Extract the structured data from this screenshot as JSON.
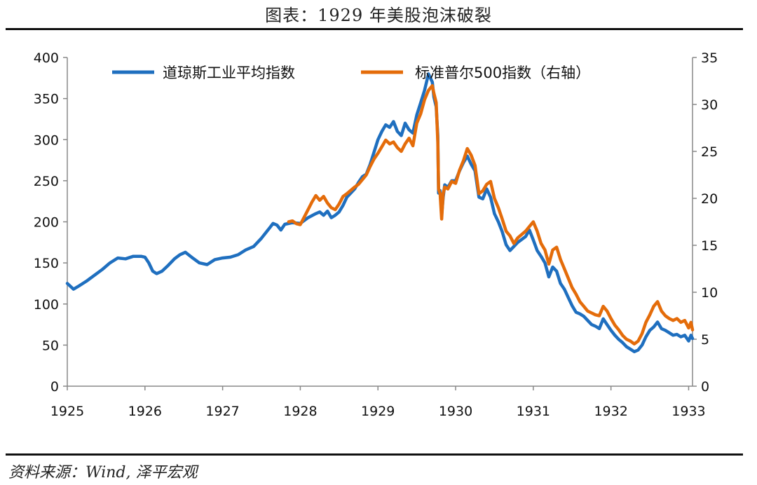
{
  "title": "图表：1929 年美股泡沫破裂",
  "source": "资料来源：Wind, 泽平宏观",
  "chart_data": {
    "type": "line",
    "x_ticks": [
      "1925",
      "1926",
      "1927",
      "1928",
      "1929",
      "1930",
      "1931",
      "1932",
      "1933"
    ],
    "x_range": [
      1925.0,
      1933.05
    ],
    "y_left": {
      "range": [
        0,
        400
      ],
      "ticks": [
        "0",
        "50",
        "100",
        "150",
        "200",
        "250",
        "300",
        "350",
        "400"
      ]
    },
    "y_right": {
      "range": [
        0,
        35
      ],
      "ticks": [
        "0",
        "5",
        "10",
        "15",
        "20",
        "25",
        "30",
        "35"
      ]
    },
    "legend_position": "top",
    "series": [
      {
        "name": "道琼斯工业平均指数",
        "axis": "left",
        "color": "#1F6FBF",
        "points": [
          [
            1925.0,
            125
          ],
          [
            1925.08,
            118
          ],
          [
            1925.15,
            122
          ],
          [
            1925.25,
            128
          ],
          [
            1925.35,
            135
          ],
          [
            1925.45,
            142
          ],
          [
            1925.55,
            150
          ],
          [
            1925.65,
            156
          ],
          [
            1925.75,
            155
          ],
          [
            1925.85,
            158
          ],
          [
            1925.95,
            158
          ],
          [
            1926.0,
            157
          ],
          [
            1926.05,
            150
          ],
          [
            1926.1,
            140
          ],
          [
            1926.15,
            137
          ],
          [
            1926.22,
            140
          ],
          [
            1926.3,
            147
          ],
          [
            1926.38,
            155
          ],
          [
            1926.45,
            160
          ],
          [
            1926.52,
            163
          ],
          [
            1926.6,
            157
          ],
          [
            1926.7,
            150
          ],
          [
            1926.8,
            148
          ],
          [
            1926.9,
            154
          ],
          [
            1927.0,
            156
          ],
          [
            1927.1,
            157
          ],
          [
            1927.2,
            160
          ],
          [
            1927.3,
            166
          ],
          [
            1927.4,
            170
          ],
          [
            1927.5,
            180
          ],
          [
            1927.6,
            192
          ],
          [
            1927.65,
            198
          ],
          [
            1927.7,
            196
          ],
          [
            1927.75,
            190
          ],
          [
            1927.8,
            197
          ],
          [
            1927.9,
            199
          ],
          [
            1928.0,
            198
          ],
          [
            1928.1,
            205
          ],
          [
            1928.2,
            210
          ],
          [
            1928.25,
            212
          ],
          [
            1928.3,
            208
          ],
          [
            1928.35,
            213
          ],
          [
            1928.4,
            205
          ],
          [
            1928.45,
            208
          ],
          [
            1928.5,
            212
          ],
          [
            1928.55,
            220
          ],
          [
            1928.6,
            230
          ],
          [
            1928.7,
            240
          ],
          [
            1928.75,
            248
          ],
          [
            1928.8,
            255
          ],
          [
            1928.85,
            258
          ],
          [
            1928.9,
            270
          ],
          [
            1928.95,
            285
          ],
          [
            1929.0,
            300
          ],
          [
            1929.05,
            310
          ],
          [
            1929.1,
            318
          ],
          [
            1929.15,
            315
          ],
          [
            1929.2,
            322
          ],
          [
            1929.25,
            310
          ],
          [
            1929.3,
            305
          ],
          [
            1929.35,
            320
          ],
          [
            1929.4,
            312
          ],
          [
            1929.45,
            308
          ],
          [
            1929.5,
            330
          ],
          [
            1929.55,
            345
          ],
          [
            1929.6,
            360
          ],
          [
            1929.65,
            380
          ],
          [
            1929.7,
            370
          ],
          [
            1929.72,
            352
          ],
          [
            1929.75,
            340
          ],
          [
            1929.77,
            305
          ],
          [
            1929.78,
            235
          ],
          [
            1929.8,
            238
          ],
          [
            1929.82,
            208
          ],
          [
            1929.84,
            230
          ],
          [
            1929.86,
            245
          ],
          [
            1929.9,
            242
          ],
          [
            1929.95,
            250
          ],
          [
            1930.0,
            250
          ],
          [
            1930.05,
            262
          ],
          [
            1930.1,
            272
          ],
          [
            1930.15,
            280
          ],
          [
            1930.2,
            270
          ],
          [
            1930.25,
            262
          ],
          [
            1930.3,
            230
          ],
          [
            1930.35,
            228
          ],
          [
            1930.4,
            240
          ],
          [
            1930.45,
            230
          ],
          [
            1930.5,
            210
          ],
          [
            1930.55,
            200
          ],
          [
            1930.6,
            188
          ],
          [
            1930.65,
            172
          ],
          [
            1930.7,
            165
          ],
          [
            1930.75,
            170
          ],
          [
            1930.8,
            175
          ],
          [
            1930.9,
            182
          ],
          [
            1930.95,
            190
          ],
          [
            1931.0,
            178
          ],
          [
            1931.05,
            165
          ],
          [
            1931.1,
            158
          ],
          [
            1931.15,
            150
          ],
          [
            1931.2,
            133
          ],
          [
            1931.25,
            145
          ],
          [
            1931.3,
            140
          ],
          [
            1931.35,
            125
          ],
          [
            1931.4,
            118
          ],
          [
            1931.45,
            108
          ],
          [
            1931.5,
            98
          ],
          [
            1931.55,
            90
          ],
          [
            1931.6,
            88
          ],
          [
            1931.65,
            85
          ],
          [
            1931.7,
            80
          ],
          [
            1931.75,
            75
          ],
          [
            1931.8,
            73
          ],
          [
            1931.85,
            70
          ],
          [
            1931.9,
            82
          ],
          [
            1931.95,
            75
          ],
          [
            1932.0,
            68
          ],
          [
            1932.05,
            62
          ],
          [
            1932.1,
            57
          ],
          [
            1932.15,
            53
          ],
          [
            1932.2,
            48
          ],
          [
            1932.25,
            45
          ],
          [
            1932.3,
            42
          ],
          [
            1932.35,
            44
          ],
          [
            1932.4,
            50
          ],
          [
            1932.45,
            60
          ],
          [
            1932.5,
            68
          ],
          [
            1932.55,
            72
          ],
          [
            1932.6,
            78
          ],
          [
            1932.65,
            70
          ],
          [
            1932.7,
            68
          ],
          [
            1932.75,
            65
          ],
          [
            1932.8,
            62
          ],
          [
            1932.85,
            63
          ],
          [
            1932.9,
            60
          ],
          [
            1932.95,
            62
          ],
          [
            1933.0,
            55
          ],
          [
            1933.03,
            62
          ],
          [
            1933.05,
            58
          ]
        ]
      },
      {
        "name": "标准普尔500指数（右轴）",
        "axis": "right",
        "color": "#E46C0A",
        "points": [
          [
            1927.85,
            17.5
          ],
          [
            1927.9,
            17.6
          ],
          [
            1927.95,
            17.3
          ],
          [
            1928.0,
            17.2
          ],
          [
            1928.05,
            18.0
          ],
          [
            1928.1,
            18.8
          ],
          [
            1928.15,
            19.6
          ],
          [
            1928.2,
            20.3
          ],
          [
            1928.25,
            19.8
          ],
          [
            1928.3,
            20.2
          ],
          [
            1928.35,
            19.5
          ],
          [
            1928.4,
            19.0
          ],
          [
            1928.45,
            18.8
          ],
          [
            1928.5,
            19.4
          ],
          [
            1928.55,
            20.2
          ],
          [
            1928.6,
            20.5
          ],
          [
            1928.7,
            21.2
          ],
          [
            1928.75,
            21.5
          ],
          [
            1928.8,
            22.0
          ],
          [
            1928.85,
            22.5
          ],
          [
            1928.9,
            23.4
          ],
          [
            1928.95,
            24.2
          ],
          [
            1929.0,
            24.8
          ],
          [
            1929.05,
            25.5
          ],
          [
            1929.1,
            26.2
          ],
          [
            1929.15,
            25.8
          ],
          [
            1929.2,
            26.0
          ],
          [
            1929.25,
            25.4
          ],
          [
            1929.3,
            25.0
          ],
          [
            1929.35,
            25.8
          ],
          [
            1929.4,
            26.4
          ],
          [
            1929.45,
            25.6
          ],
          [
            1929.5,
            28.0
          ],
          [
            1929.55,
            29.0
          ],
          [
            1929.6,
            30.5
          ],
          [
            1929.65,
            31.5
          ],
          [
            1929.7,
            32.0
          ],
          [
            1929.72,
            31.2
          ],
          [
            1929.75,
            30.2
          ],
          [
            1929.77,
            26.0
          ],
          [
            1929.78,
            21.0
          ],
          [
            1929.8,
            20.5
          ],
          [
            1929.82,
            17.8
          ],
          [
            1929.84,
            20.5
          ],
          [
            1929.86,
            21.2
          ],
          [
            1929.9,
            21.0
          ],
          [
            1929.95,
            21.8
          ],
          [
            1930.0,
            21.6
          ],
          [
            1930.05,
            23.0
          ],
          [
            1930.1,
            24.0
          ],
          [
            1930.15,
            25.3
          ],
          [
            1930.2,
            24.6
          ],
          [
            1930.25,
            23.5
          ],
          [
            1930.3,
            20.5
          ],
          [
            1930.35,
            20.8
          ],
          [
            1930.4,
            21.5
          ],
          [
            1930.45,
            21.8
          ],
          [
            1930.5,
            20.0
          ],
          [
            1930.55,
            19.0
          ],
          [
            1930.6,
            17.8
          ],
          [
            1930.65,
            16.5
          ],
          [
            1930.7,
            16.0
          ],
          [
            1930.75,
            15.2
          ],
          [
            1930.8,
            15.8
          ],
          [
            1930.9,
            16.5
          ],
          [
            1930.95,
            17.0
          ],
          [
            1931.0,
            17.5
          ],
          [
            1931.05,
            16.5
          ],
          [
            1931.1,
            15.2
          ],
          [
            1931.15,
            14.5
          ],
          [
            1931.2,
            13.0
          ],
          [
            1931.25,
            14.5
          ],
          [
            1931.3,
            14.8
          ],
          [
            1931.35,
            13.5
          ],
          [
            1931.4,
            12.5
          ],
          [
            1931.45,
            11.5
          ],
          [
            1931.5,
            10.5
          ],
          [
            1931.55,
            9.8
          ],
          [
            1931.6,
            9.0
          ],
          [
            1931.65,
            8.5
          ],
          [
            1931.7,
            8.0
          ],
          [
            1931.75,
            7.8
          ],
          [
            1931.8,
            7.6
          ],
          [
            1931.85,
            7.5
          ],
          [
            1931.9,
            8.5
          ],
          [
            1931.95,
            8.0
          ],
          [
            1932.0,
            7.2
          ],
          [
            1932.05,
            6.5
          ],
          [
            1932.1,
            6.0
          ],
          [
            1932.15,
            5.4
          ],
          [
            1932.2,
            5.0
          ],
          [
            1932.25,
            4.8
          ],
          [
            1932.3,
            4.5
          ],
          [
            1932.35,
            4.8
          ],
          [
            1932.4,
            5.6
          ],
          [
            1932.45,
            6.8
          ],
          [
            1932.5,
            7.6
          ],
          [
            1932.55,
            8.5
          ],
          [
            1932.6,
            9.0
          ],
          [
            1932.65,
            8.0
          ],
          [
            1932.7,
            7.5
          ],
          [
            1932.75,
            7.2
          ],
          [
            1932.8,
            7.0
          ],
          [
            1932.85,
            7.2
          ],
          [
            1932.9,
            6.8
          ],
          [
            1932.95,
            7.0
          ],
          [
            1933.0,
            6.2
          ],
          [
            1933.03,
            6.8
          ],
          [
            1933.05,
            6.0
          ]
        ]
      }
    ]
  }
}
